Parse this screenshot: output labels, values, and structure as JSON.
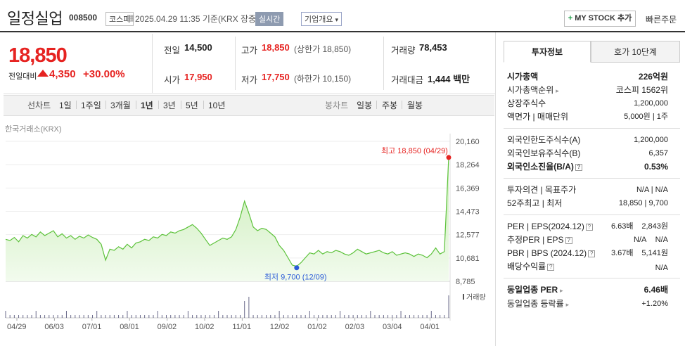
{
  "header": {
    "title": "일정실업",
    "code": "008500",
    "market": "코스피",
    "datetime": "2025.04.29 11:35 기준(KRX 장중)",
    "realtime": "실시간",
    "corp_info": "기업개요",
    "mystock": "MY STOCK 추가",
    "quick_order": "빠른주문"
  },
  "price": {
    "current": "18,850",
    "change_label": "전일대비",
    "change": "4,350",
    "change_pct": "+30.00%"
  },
  "summary": {
    "prev_label": "전일",
    "prev": "14,500",
    "high_label": "고가",
    "high": "18,850",
    "upper_limit": "(상한가 18,850)",
    "volume_label": "거래량",
    "volume": "78,453",
    "open_label": "시가",
    "open": "17,950",
    "low_label": "저가",
    "low": "17,750",
    "lower_limit": "(하한가 10,150)",
    "amount_label": "거래대금",
    "amount": "1,444 백만"
  },
  "chart_tabs": {
    "line_label": "선차트",
    "periods": [
      "1일",
      "1주일",
      "3개월",
      "1년",
      "3년",
      "5년",
      "10년"
    ],
    "candle_label": "봉차트",
    "candles": [
      "일봉",
      "주봉",
      "월봉"
    ]
  },
  "chart_source": "한국거래소(KRX)",
  "chart_data": {
    "type": "area",
    "y_ticks": [
      "20,160",
      "18,264",
      "16,369",
      "14,473",
      "12,577",
      "10,681",
      "8,785"
    ],
    "ylim": [
      8785,
      20160
    ],
    "x_ticks": [
      "04/29",
      "06/03",
      "07/01",
      "08/01",
      "09/02",
      "10/02",
      "11/01",
      "12/02",
      "01/02",
      "02/03",
      "03/04",
      "04/01"
    ],
    "high_annotation": "최고 18,850 (04/29)",
    "low_annotation": "최저 9,700 (12/09)",
    "volume_label": "거래량",
    "values": [
      12200,
      12100,
      12350,
      12000,
      12500,
      12300,
      12600,
      12400,
      12800,
      12500,
      12700,
      12900,
      12400,
      12650,
      12300,
      12500,
      12200,
      12450,
      12300,
      12550,
      12350,
      12200,
      11800,
      10500,
      11400,
      11300,
      11600,
      11400,
      11800,
      11500,
      11900,
      12000,
      12200,
      12100,
      12400,
      12300,
      12600,
      12500,
      12800,
      12700,
      12900,
      13000,
      13200,
      13400,
      13100,
      12700,
      12200,
      11700,
      11900,
      12100,
      12300,
      12200,
      12400,
      13000,
      14000,
      15300,
      14300,
      13200,
      12900,
      13100,
      13000,
      12700,
      12400,
      11700,
      11300,
      10700,
      10100,
      10000,
      10300,
      10700,
      11100,
      11000,
      11300,
      11000,
      11200,
      11100,
      11300,
      11200,
      11000,
      10900,
      11100,
      11400,
      11200,
      11000,
      11100,
      11200,
      11300,
      11100,
      11000,
      11200,
      10900,
      11000,
      11100,
      11000,
      10800,
      11000,
      10900,
      10700,
      11000,
      11500,
      11000,
      11200,
      18850
    ],
    "colors": {
      "line": "#5cc23a",
      "fill_top": "#c8ecb4",
      "fill_bottom": "#f2fbee",
      "high": "#e62321",
      "low": "#2a5bd7"
    }
  },
  "right_panel": {
    "tab_invest": "투자정보",
    "tab_order": "호가 10단계",
    "rows1": [
      {
        "label": "시가총액",
        "value": "226억원"
      },
      {
        "label": "시가총액순위",
        "value": "코스피 1562위"
      },
      {
        "label": "상장주식수",
        "value": "1,200,000"
      },
      {
        "label": "액면가 | 매매단위",
        "value": "5,000원 | 1주"
      }
    ],
    "rows2": [
      {
        "label": "외국인한도주식수(A)",
        "value": "1,200,000"
      },
      {
        "label": "외국인보유주식수(B)",
        "value": "6,357"
      },
      {
        "label": "외국인소진율(B/A)",
        "value": "0.53%"
      }
    ],
    "rows3": [
      {
        "label": "투자의견 | 목표주가",
        "value": "N/A | N/A"
      },
      {
        "label": "52주최고 | 최저",
        "value": "18,850 | 9,700"
      }
    ],
    "rows4": [
      {
        "label": "PER | EPS(2024.12)",
        "v1": "6.63배",
        "v2": "2,843원"
      },
      {
        "label": "추정PER | EPS",
        "v1": "N/A",
        "v2": "N/A"
      },
      {
        "label": "PBR | BPS (2024.12)",
        "v1": "3.67배",
        "v2": "5,141원"
      },
      {
        "label": "배당수익률",
        "v1": "",
        "v2": "N/A"
      }
    ],
    "rows5": [
      {
        "label": "동일업종 PER",
        "value": "6.46배"
      },
      {
        "label": "동일업종 등락률",
        "value": "+1.20%"
      }
    ]
  }
}
